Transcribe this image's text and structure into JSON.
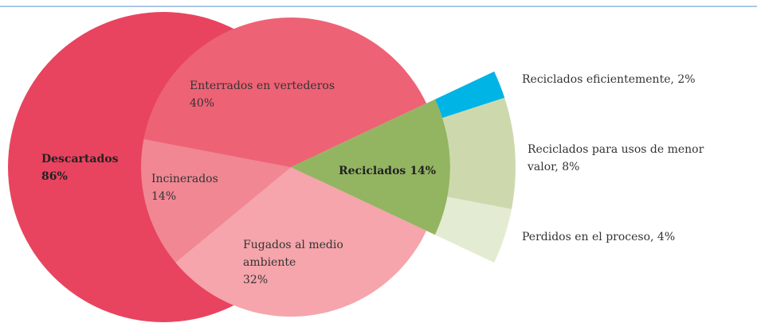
{
  "chart_data": {
    "type": "sunburst",
    "segments": [
      {
        "name": "Descartados",
        "value": 86,
        "value_label": "86%",
        "color": "#e8445f",
        "children": [
          {
            "label": [
              "Enterrados en vertederos"
            ],
            "value": 40,
            "value_label": "40%",
            "color": "#ee6275"
          },
          {
            "label": [
              "Incinerados"
            ],
            "value": 14,
            "value_label": "14%",
            "color": "#f08793"
          },
          {
            "label": [
              "Fugados al medio",
              "ambiente"
            ],
            "value": 32,
            "value_label": "32%",
            "color": "#f5a5ab"
          }
        ]
      },
      {
        "name": "Reciclados",
        "value": 14,
        "value_label": "14%",
        "color": "#93b561",
        "children": [
          {
            "label": [
              "Reciclados eficientemente, 2%"
            ],
            "value": 2,
            "color": "#00b4e6"
          },
          {
            "label": [
              "Reciclados para usos de menor",
              "valor, 8%"
            ],
            "value": 8,
            "color": "#cdd9ad"
          },
          {
            "label": [
              "Perdidos en el proceso, 4%"
            ],
            "value": 4,
            "color": "#e3ebd2"
          }
        ]
      }
    ]
  }
}
